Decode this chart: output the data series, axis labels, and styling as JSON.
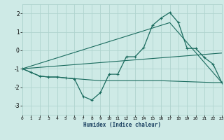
{
  "xlabel": "Humidex (Indice chaleur)",
  "ylabel": "",
  "background_color": "#ceeae6",
  "grid_color": "#afd4cf",
  "line_color": "#1a6b5e",
  "line1_x": [
    0,
    1,
    2,
    3,
    4,
    5,
    6,
    7,
    8,
    9,
    10,
    11,
    12,
    13,
    14,
    15,
    16,
    17,
    18,
    19,
    20,
    21,
    22,
    23
  ],
  "line1_y": [
    -1.0,
    -1.2,
    -1.4,
    -1.45,
    -1.45,
    -1.5,
    -1.55,
    -2.5,
    -2.7,
    -2.3,
    -1.3,
    -1.3,
    -0.35,
    -0.35,
    0.15,
    1.35,
    1.75,
    2.05,
    1.5,
    0.1,
    0.1,
    -0.4,
    -0.75,
    -1.75
  ],
  "line2_x": [
    0,
    1,
    2,
    3,
    4,
    5,
    9,
    10,
    11,
    14,
    15,
    16,
    22,
    23
  ],
  "line2_y": [
    -1.0,
    -1.2,
    -1.4,
    -1.45,
    -1.45,
    -1.5,
    -1.65,
    -1.65,
    -1.65,
    -1.65,
    -1.65,
    -1.65,
    -1.75,
    -1.75
  ],
  "line3_x": [
    0,
    23
  ],
  "line3_y": [
    -1.0,
    -0.15
  ],
  "line4_x": [
    0,
    17,
    23
  ],
  "line4_y": [
    -1.0,
    1.5,
    -1.75
  ],
  "xlim": [
    0,
    23
  ],
  "ylim": [
    -3.5,
    2.5
  ],
  "yticks": [
    -3,
    -2,
    -1,
    0,
    1,
    2
  ],
  "xticks": [
    0,
    1,
    2,
    3,
    4,
    5,
    6,
    7,
    8,
    9,
    10,
    11,
    12,
    13,
    14,
    15,
    16,
    17,
    18,
    19,
    20,
    21,
    22,
    23
  ]
}
